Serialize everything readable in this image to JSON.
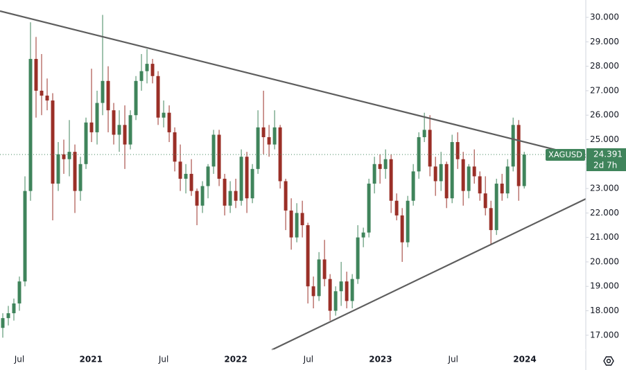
{
  "chart_data": {
    "type": "candlestick",
    "symbol": "XAGUSD",
    "countdown": "2d 7h",
    "last_price": 24.391,
    "up_color": "#3f845b",
    "down_color": "#9a2f27",
    "xlim": [
      -0.5,
      105.1
    ],
    "xticks": [
      {
        "value": 3,
        "label": "Jul"
      },
      {
        "value": 15.9,
        "label": "2021"
      },
      {
        "value": 29,
        "label": "Jul"
      },
      {
        "value": 42,
        "label": "2022"
      },
      {
        "value": 55.1,
        "label": "Jul"
      },
      {
        "value": 68.1,
        "label": "2023"
      },
      {
        "value": 81.2,
        "label": "Jul"
      },
      {
        "value": 94.1,
        "label": "2024"
      }
    ],
    "ylim": [
      16.4,
      30.71
    ],
    "yticks": [
      {
        "value": 17,
        "label": "17.000"
      },
      {
        "value": 18,
        "label": "18.000"
      },
      {
        "value": 19,
        "label": "19.000"
      },
      {
        "value": 20,
        "label": "20.000"
      },
      {
        "value": 21,
        "label": "21.000"
      },
      {
        "value": 22,
        "label": "22.000"
      },
      {
        "value": 23,
        "label": "23.000"
      },
      {
        "value": 24,
        "label": "24.000"
      },
      {
        "value": 25,
        "label": "25.000"
      },
      {
        "value": 26,
        "label": "26.000"
      },
      {
        "value": 27,
        "label": "27.000"
      },
      {
        "value": 28,
        "label": "28.000"
      },
      {
        "value": 29,
        "label": "29.000"
      },
      {
        "value": 30,
        "label": "30.000"
      }
    ],
    "open": [
      17.3,
      17.7,
      17.9,
      18.3,
      19.2,
      22.9,
      28.3,
      27.0,
      26.8,
      26.6,
      23.2,
      24.4,
      24.2,
      24.5,
      22.9,
      24.0,
      25.7,
      25.3,
      26.5,
      27.4,
      26.2,
      25.2,
      25.6,
      24.8,
      26.0,
      27.4,
      27.8,
      28.1,
      27.6,
      25.9,
      26.1,
      25.3,
      24.1,
      23.4,
      23.6,
      22.9,
      22.3,
      23.1,
      23.9,
      25.2,
      23.4,
      22.3,
      22.9,
      22.5,
      24.3,
      22.6,
      23.8,
      25.5,
      25.1,
      24.8,
      25.5,
      23.3,
      22.1,
      21.0,
      22.0,
      21.5,
      19.0,
      18.6,
      20.1,
      19.3,
      18.0,
      18.8,
      19.2,
      18.4,
      19.3,
      21.0,
      21.2,
      23.2,
      24.0,
      23.8,
      24.2,
      22.5,
      21.9,
      20.8,
      22.5,
      23.7,
      25.1,
      25.4,
      23.9,
      23.3,
      24.0,
      22.6,
      24.9,
      24.2,
      22.9,
      23.9,
      23.5,
      22.8,
      22.2,
      21.3,
      23.2,
      22.8,
      23.9,
      25.6,
      23.1
    ],
    "high": [
      17.9,
      18.2,
      18.5,
      19.4,
      23.5,
      29.8,
      29.2,
      28.5,
      27.5,
      26.9,
      24.9,
      25.0,
      25.8,
      24.8,
      24.3,
      25.9,
      27.9,
      27.0,
      30.1,
      28.0,
      26.5,
      26.2,
      26.4,
      26.2,
      27.6,
      28.5,
      28.7,
      28.3,
      27.8,
      26.6,
      26.4,
      25.5,
      24.8,
      24.0,
      24.2,
      23.0,
      23.3,
      24.0,
      25.4,
      25.4,
      23.6,
      23.3,
      23.4,
      24.6,
      24.5,
      24.0,
      26.2,
      27.0,
      25.6,
      26.2,
      25.6,
      23.4,
      22.6,
      22.4,
      22.5,
      21.6,
      19.4,
      20.4,
      20.9,
      19.5,
      19.0,
      20.0,
      19.6,
      19.5,
      21.5,
      21.4,
      23.4,
      24.3,
      24.4,
      24.6,
      24.4,
      22.8,
      22.2,
      22.7,
      24.0,
      25.3,
      26.1,
      26.0,
      24.3,
      24.5,
      24.1,
      25.2,
      25.3,
      24.5,
      24.0,
      24.6,
      23.7,
      23.5,
      22.5,
      23.4,
      23.6,
      24.2,
      25.9,
      25.8,
      24.5
    ],
    "low": [
      16.9,
      17.4,
      17.6,
      18.0,
      19.0,
      22.5,
      25.9,
      26.0,
      26.2,
      21.7,
      22.9,
      23.6,
      23.5,
      22.0,
      22.5,
      23.8,
      24.9,
      24.8,
      26.0,
      25.3,
      24.8,
      24.5,
      23.8,
      24.6,
      25.8,
      27.0,
      27.3,
      27.3,
      25.6,
      25.5,
      24.9,
      23.7,
      22.9,
      22.8,
      22.7,
      21.5,
      22.0,
      22.6,
      23.6,
      23.1,
      21.9,
      22.0,
      22.2,
      22.3,
      22.0,
      22.4,
      23.6,
      24.4,
      24.3,
      24.6,
      23.0,
      21.3,
      20.5,
      20.8,
      21.0,
      18.3,
      18.1,
      18.4,
      19.0,
      17.6,
      17.8,
      18.2,
      18.1,
      18.1,
      19.1,
      20.6,
      21.0,
      22.8,
      23.2,
      23.4,
      22.0,
      21.7,
      20.0,
      20.6,
      22.3,
      23.4,
      24.9,
      23.5,
      22.7,
      22.9,
      22.2,
      22.4,
      23.8,
      22.3,
      22.6,
      23.2,
      22.5,
      21.9,
      20.7,
      21.1,
      22.5,
      22.6,
      23.7,
      22.5,
      23.0
    ],
    "close": [
      17.7,
      17.9,
      18.3,
      19.2,
      22.9,
      28.3,
      27.0,
      26.8,
      26.6,
      23.2,
      24.4,
      24.2,
      24.5,
      22.9,
      24.0,
      25.7,
      25.3,
      26.5,
      27.4,
      26.2,
      25.2,
      25.6,
      24.8,
      26.0,
      27.4,
      27.8,
      28.1,
      27.6,
      25.9,
      26.1,
      25.3,
      24.1,
      23.4,
      23.6,
      22.9,
      22.3,
      23.1,
      23.9,
      25.2,
      23.4,
      22.3,
      22.9,
      22.5,
      24.3,
      22.6,
      23.8,
      25.5,
      25.1,
      24.8,
      25.5,
      23.3,
      22.1,
      21.0,
      22.0,
      21.5,
      19.0,
      18.6,
      20.1,
      19.3,
      18.0,
      18.8,
      19.2,
      18.4,
      19.3,
      21.0,
      21.2,
      23.2,
      24.0,
      23.8,
      24.2,
      22.5,
      21.9,
      20.8,
      22.5,
      23.7,
      25.1,
      25.4,
      23.9,
      23.3,
      24.0,
      22.6,
      24.9,
      24.2,
      22.9,
      23.9,
      23.5,
      22.8,
      22.2,
      21.3,
      23.2,
      22.8,
      23.9,
      25.6,
      23.1,
      24.391
    ]
  }
}
